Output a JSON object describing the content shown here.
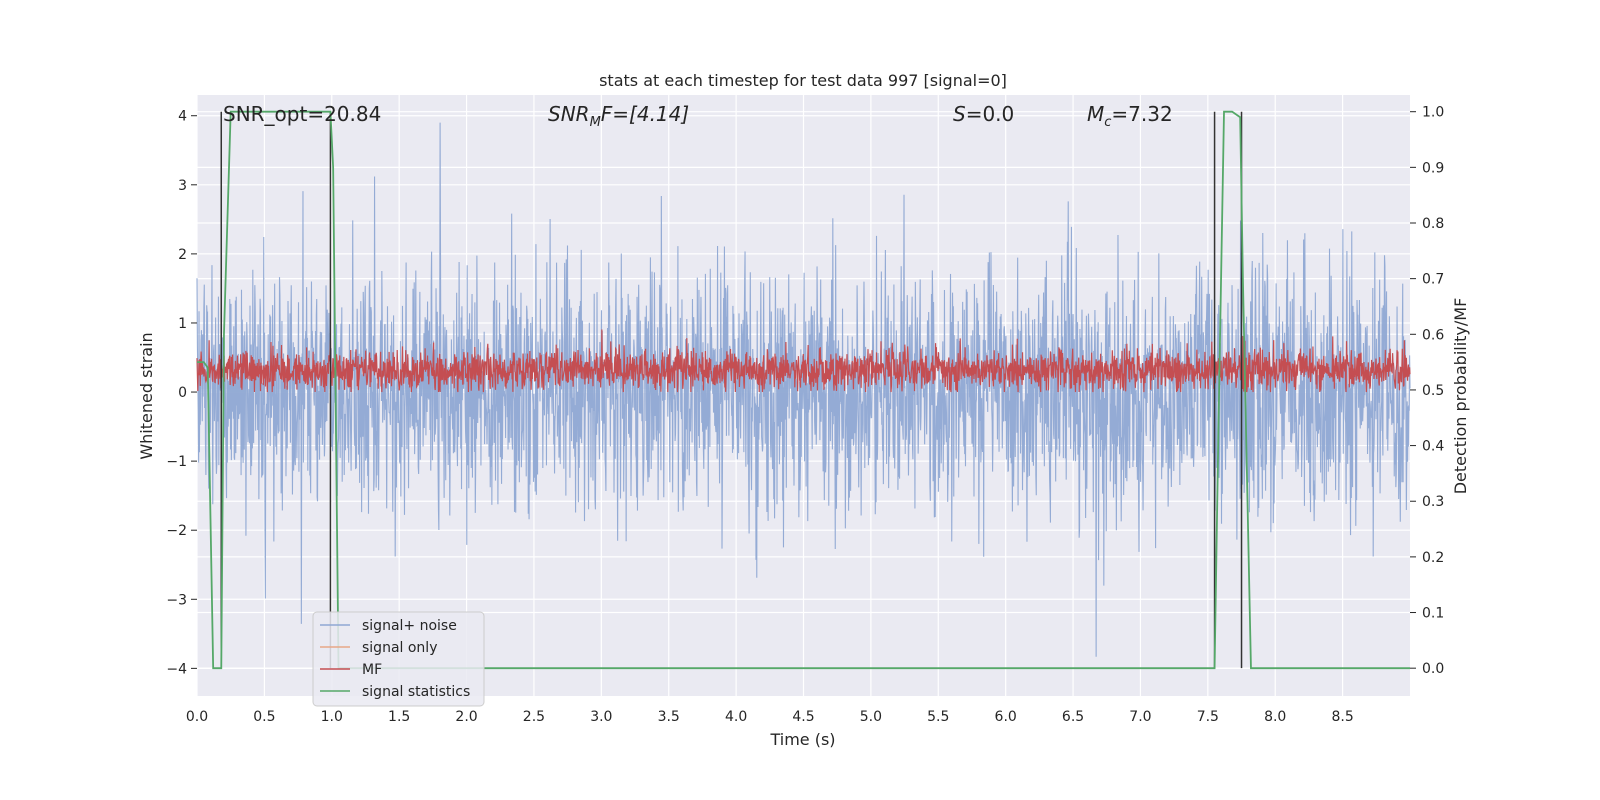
{
  "chart_data": {
    "type": "line",
    "title": "stats at each timestep for test data 997 [signal=0]",
    "xlabel": "Time (s)",
    "ylabel_left": "Whitened strain",
    "ylabel_right": "Detection probability/MF",
    "xlim": [
      0.0,
      9.0
    ],
    "ylim_left": [
      -4.4,
      4.3
    ],
    "ylim_right": [
      -0.05,
      1.03
    ],
    "grid": true,
    "x_ticks": [
      "0.0",
      "0.5",
      "1.0",
      "1.5",
      "2.0",
      "2.5",
      "3.0",
      "3.5",
      "4.0",
      "4.5",
      "5.0",
      "5.5",
      "6.0",
      "6.5",
      "7.0",
      "7.5",
      "8.0",
      "8.5"
    ],
    "y_ticks_left": [
      "−4",
      "−3",
      "−2",
      "−1",
      "0",
      "1",
      "2",
      "3",
      "4"
    ],
    "y_ticks_right": [
      "0.0",
      "0.1",
      "0.2",
      "0.3",
      "0.4",
      "0.5",
      "0.6",
      "0.7",
      "0.8",
      "0.9",
      "1.0"
    ],
    "annotations": [
      {
        "text": "SNR_opt=20.84"
      },
      {
        "text_main": "SNR",
        "text_sub": "M",
        "text_rest": "F=[4.14]"
      },
      {
        "text_main": "S",
        "text_rest": "=0.0"
      },
      {
        "text_main": "M",
        "text_sub": "c",
        "text_rest": "=7.32"
      }
    ],
    "legend": {
      "placement": "lower-left",
      "entries": [
        "signal+ noise",
        "signal only",
        "MF",
        "signal statistics"
      ]
    },
    "colors": {
      "signal_noise": "#8fa8d3",
      "signal_only": "#e8a787",
      "mf": "#c44e52",
      "signal_statistics": "#55a868",
      "detection_lines": "#333333",
      "background": "#eaeaf2"
    },
    "series": [
      {
        "name": "signal+ noise",
        "axis": "left",
        "description_values": "noise_band",
        "envelope": {
          "typical_range": [
            -1.6,
            1.5
          ],
          "peak_max": 3.9,
          "peak_min": -4.0
        }
      },
      {
        "name": "signal only",
        "axis": "left",
        "values": []
      },
      {
        "name": "MF",
        "axis": "left",
        "envelope": {
          "typical_range": [
            0.0,
            0.75
          ],
          "peak_max": 1.0
        }
      },
      {
        "name": "signal statistics",
        "axis": "right",
        "x": [
          0.0,
          0.05,
          0.08,
          0.12,
          0.18,
          0.2,
          0.25,
          0.99,
          1.01,
          1.05,
          1.1,
          7.55,
          7.58,
          7.62,
          7.68,
          7.74,
          7.76,
          7.82,
          9.0
        ],
        "y": [
          0.55,
          0.55,
          0.54,
          0.0,
          0.0,
          0.6,
          1.0,
          1.0,
          0.9,
          0.0,
          0.0,
          0.0,
          0.45,
          1.0,
          1.0,
          0.99,
          0.7,
          0.0,
          0.0
        ]
      }
    ],
    "detection_lines_x": [
      0.18,
      0.99,
      7.55,
      7.75
    ]
  }
}
